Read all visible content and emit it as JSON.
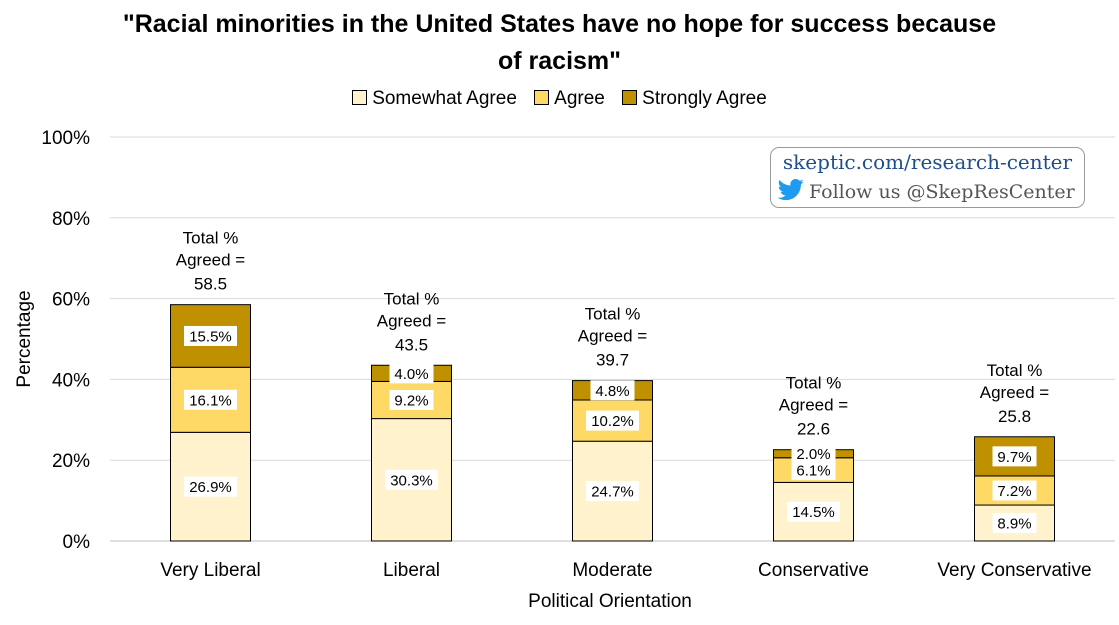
{
  "title_line1": "\"Racial minorities in the United States have no hope for success because",
  "title_line2": "of racism\"",
  "legend": [
    {
      "label": "Somewhat Agree",
      "color": "#fff2cc"
    },
    {
      "label": "Agree",
      "color": "#ffd966"
    },
    {
      "label": "Strongly Agree",
      "color": "#bf9000"
    }
  ],
  "watermark": {
    "url": "skeptic.com/research-center",
    "follow": "Follow us @SkepResCenter",
    "icon": "twitter-bird-icon"
  },
  "chart_data": {
    "type": "bar",
    "stacked": true,
    "categories": [
      "Very Liberal",
      "Liberal",
      "Moderate",
      "Conservative",
      "Very Conservative"
    ],
    "series": [
      {
        "name": "Somewhat Agree",
        "values": [
          26.9,
          30.3,
          24.7,
          14.5,
          8.9
        ],
        "labels": [
          "26.9%",
          "30.3%",
          "24.7%",
          "14.5%",
          "8.9%"
        ],
        "color": "#fff2cc"
      },
      {
        "name": "Agree",
        "values": [
          16.1,
          9.2,
          10.2,
          6.1,
          7.2
        ],
        "labels": [
          "16.1%",
          "9.2%",
          "10.2%",
          "6.1%",
          "7.2%"
        ],
        "color": "#ffd966"
      },
      {
        "name": "Strongly Agree",
        "values": [
          15.5,
          4.0,
          4.8,
          2.0,
          9.7
        ],
        "labels": [
          "15.5%",
          "4.0%",
          "4.8%",
          "2.0%",
          "9.7%"
        ],
        "color": "#bf9000"
      }
    ],
    "totals": [
      "58.5",
      "43.5",
      "39.7",
      "22.6",
      "25.8"
    ],
    "total_prefix_line1": "Total %",
    "total_prefix_line2": "Agreed =",
    "ylim": [
      0,
      100
    ],
    "yticks": [
      0,
      20,
      40,
      60,
      80,
      100
    ],
    "ytick_labels": [
      "0%",
      "20%",
      "40%",
      "60%",
      "80%",
      "100%"
    ],
    "xlabel": "Political Orientation",
    "ylabel": "Percentage",
    "grid": true,
    "legend_position": "top"
  }
}
